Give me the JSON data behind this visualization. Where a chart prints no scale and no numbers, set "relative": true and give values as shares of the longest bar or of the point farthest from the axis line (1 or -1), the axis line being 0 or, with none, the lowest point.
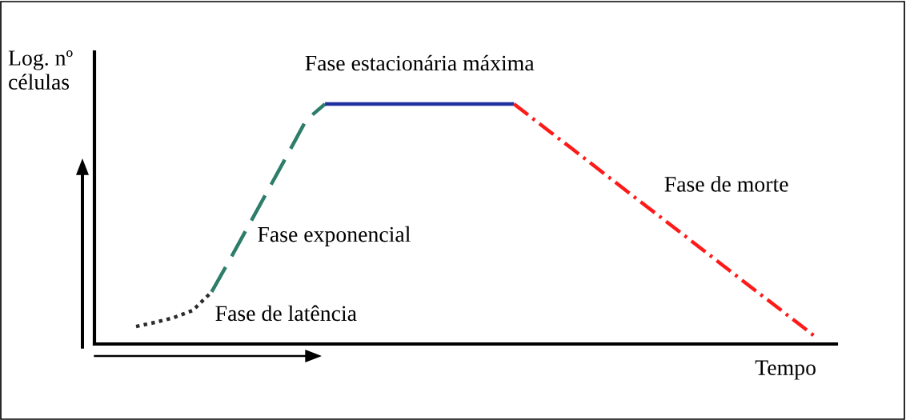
{
  "chart_data": {
    "type": "line",
    "relative": true,
    "xlabel": "Tempo",
    "ylabel": "Log. nº\ncélulas",
    "legend": false,
    "marker": "none",
    "categories": [
      null,
      null,
      null,
      null,
      null,
      null,
      null,
      null,
      null,
      null,
      null,
      null,
      null,
      null,
      null,
      null,
      null,
      null,
      null,
      null,
      null,
      null,
      null,
      null,
      null,
      null,
      null,
      null,
      null,
      null,
      null,
      null,
      null,
      null,
      null,
      null,
      null
    ],
    "series": [
      {
        "name": "Fase de latência",
        "color": "#2b2b2b",
        "line_style": "dotted",
        "values": [
          0.073,
          0.09,
          0.11,
          0.14,
          0.217,
          null,
          null,
          null,
          null,
          null,
          null,
          null,
          null,
          null,
          null,
          null,
          null,
          null,
          null,
          null,
          null,
          null,
          null,
          null,
          null,
          null,
          null,
          null,
          null,
          null,
          null,
          null,
          null,
          null,
          null,
          null,
          null
        ]
      },
      {
        "name": "Fase exponencial",
        "color": "#2e7d6b",
        "line_style": "dashed",
        "values": [
          null,
          null,
          null,
          null,
          0.217,
          0.357,
          0.5,
          0.643,
          0.787,
          0.933,
          1,
          null,
          null,
          null,
          null,
          null,
          null,
          null,
          null,
          null,
          null,
          null,
          null,
          null,
          null,
          null,
          null,
          null,
          null,
          null,
          null,
          null,
          null,
          null,
          null,
          null,
          null
        ]
      },
      {
        "name": "Fase estacionária máxima",
        "color": "#1f2fa0",
        "line_style": "solid",
        "values": [
          null,
          null,
          null,
          null,
          null,
          null,
          null,
          null,
          null,
          null,
          1,
          1,
          1,
          1,
          1,
          1,
          1,
          1,
          1,
          1,
          1,
          null,
          null,
          null,
          null,
          null,
          null,
          null,
          null,
          null,
          null,
          null,
          null,
          null,
          null,
          null,
          null
        ]
      },
      {
        "name": "Fase de morte",
        "color": "#ff1a1a",
        "line_style": "dashdot",
        "values": [
          null,
          null,
          null,
          null,
          null,
          null,
          null,
          null,
          null,
          null,
          null,
          null,
          null,
          null,
          null,
          null,
          null,
          null,
          null,
          null,
          1,
          0.939,
          0.878,
          0.818,
          0.757,
          0.696,
          0.635,
          0.574,
          0.514,
          0.453,
          0.392,
          0.331,
          0.27,
          0.209,
          0.149,
          0.088,
          0.027
        ]
      }
    ]
  }
}
